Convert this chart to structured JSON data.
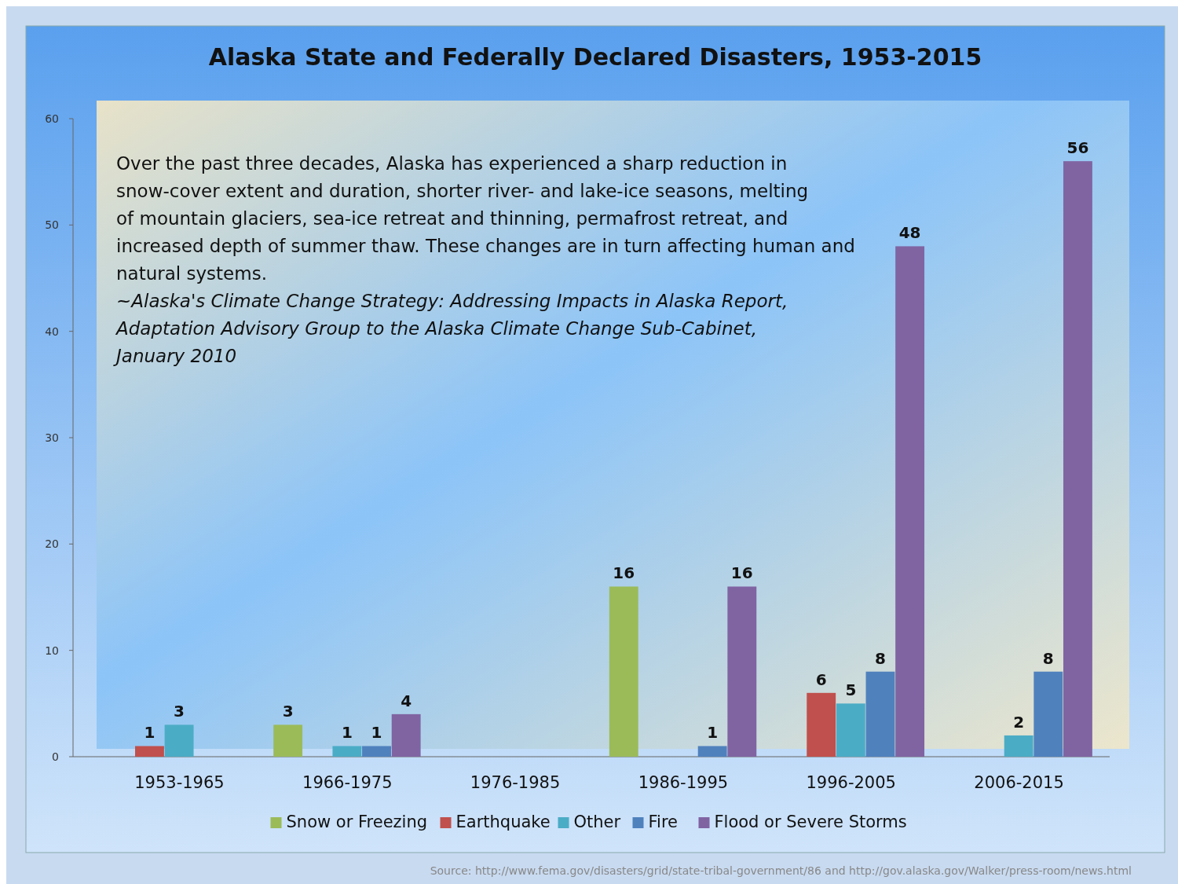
{
  "chart_data": {
    "type": "bar",
    "title": "Alaska State and Federally Declared Disasters, 1953-2015",
    "categories": [
      "1953-1965",
      "1966-1975",
      "1976-1985",
      "1986-1995",
      "1996-2005",
      "2006-2015"
    ],
    "series": [
      {
        "name": "Snow or Freezing",
        "color": "#9bbb59",
        "values": [
          null,
          3,
          null,
          16,
          null,
          null
        ]
      },
      {
        "name": "Earthquake",
        "color": "#c0504d",
        "values": [
          1,
          null,
          null,
          null,
          6,
          null
        ]
      },
      {
        "name": "Other",
        "color": "#4bacc6",
        "values": [
          3,
          1,
          null,
          null,
          5,
          2
        ]
      },
      {
        "name": "Fire",
        "color": "#4f81bd",
        "values": [
          null,
          1,
          null,
          1,
          8,
          8
        ]
      },
      {
        "name": "Flood or Severe Storms",
        "color": "#8064a2",
        "values": [
          null,
          4,
          null,
          16,
          48,
          56
        ]
      }
    ],
    "ylim": [
      0,
      60
    ],
    "yticks": [
      0,
      10,
      20,
      30,
      40,
      50,
      60
    ],
    "grid": false,
    "legend": "bottom",
    "data_labels": true,
    "annotations": [
      "Over the past three decades, Alaska has experienced a sharp reduction in snow-cover extent and duration, shorter river- and lake-ice seasons, melting of mountain glaciers, sea-ice retreat and thinning, permafrost retreat, and increased depth of summer thaw. These changes are in turn affecting human and natural systems.",
      "~Alaska's Climate Change Strategy: Addressing Impacts in Alaska Report, Adaptation Advisory Group to the Alaska Climate Change Sub-Cabinet, January 2010",
      "Source: http://www.fema.gov/disasters/grid/state-tribal-government/86 and http://gov.alaska.gov/Walker/press-room/news.html"
    ]
  }
}
